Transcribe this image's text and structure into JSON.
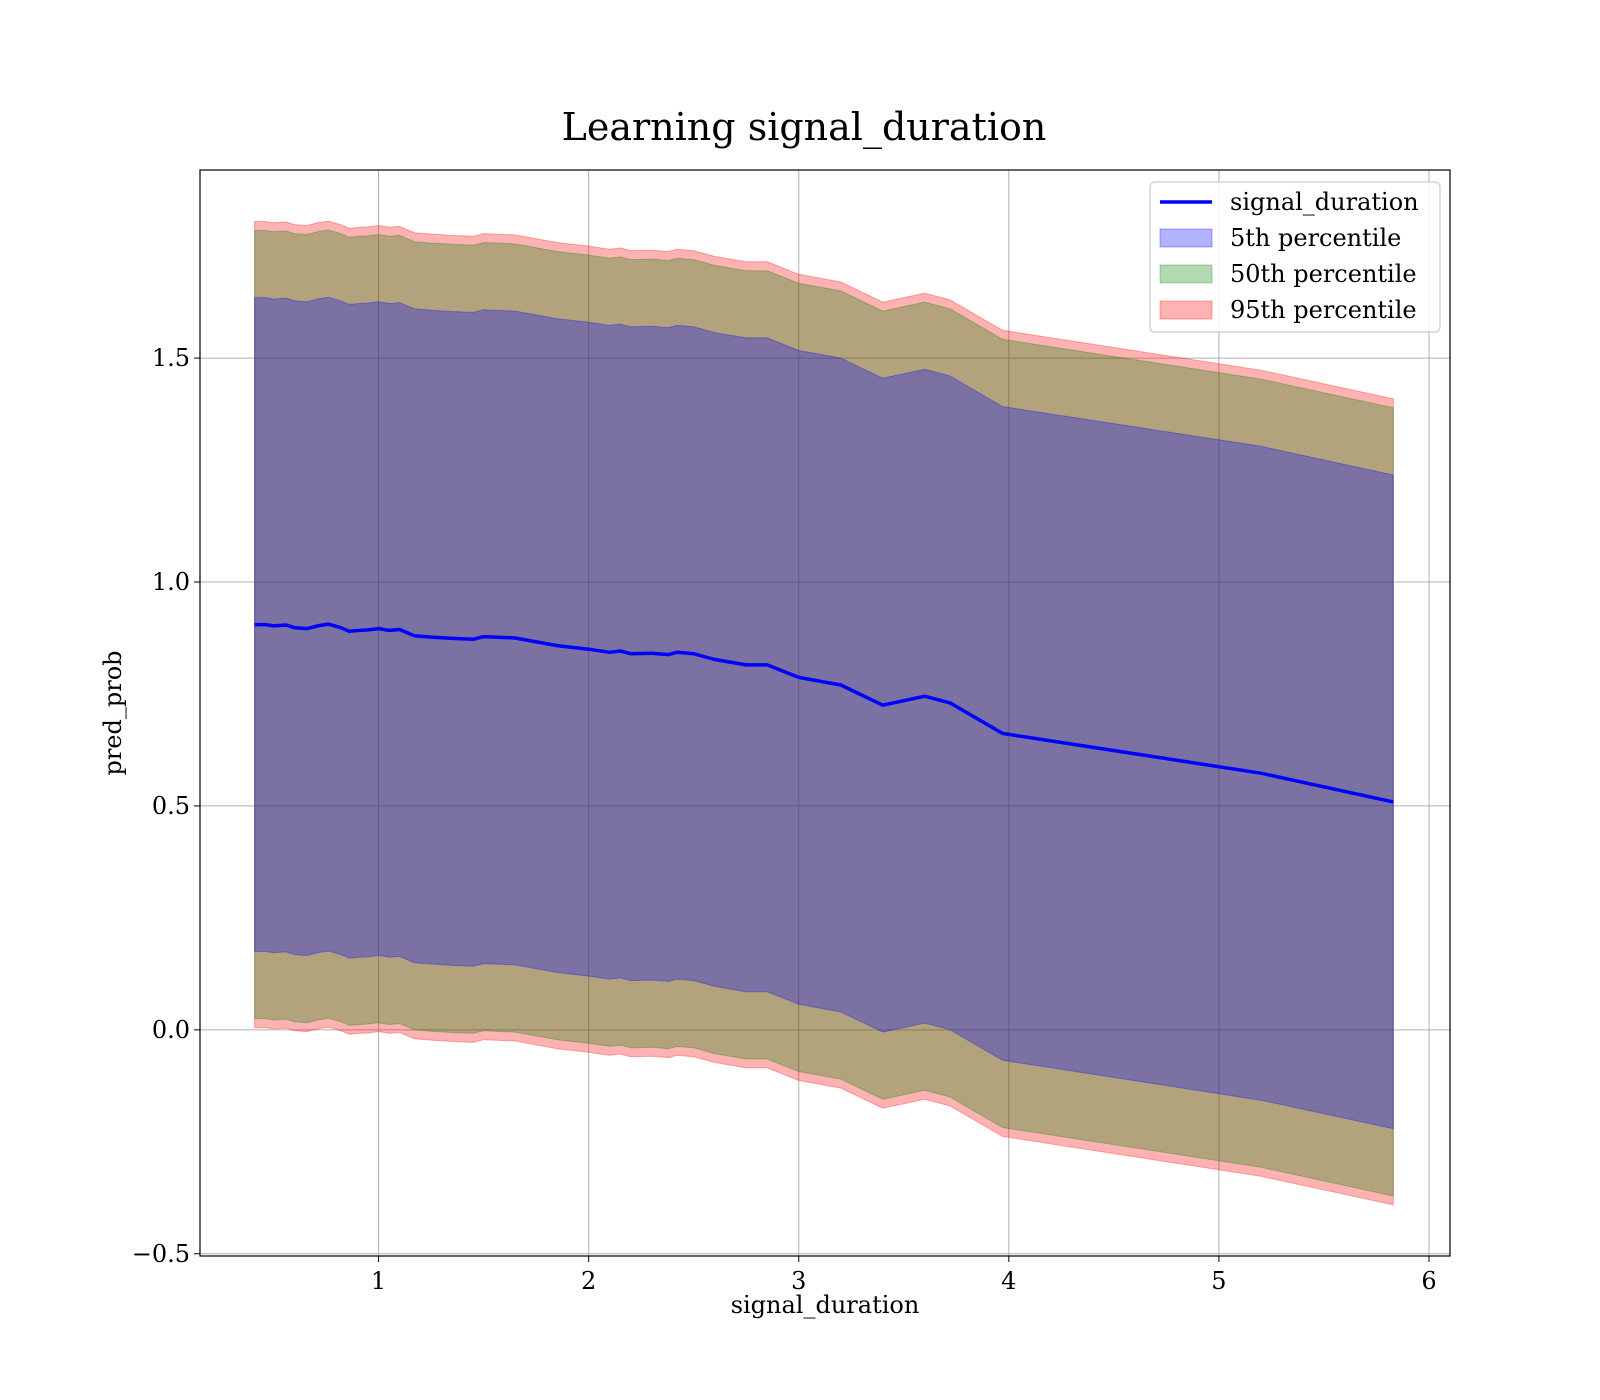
{
  "chart_data": {
    "type": "area",
    "title": "Learning signal_duration",
    "xlabel": "signal_duration",
    "ylabel": "pred_prob",
    "xlim": [
      0.15,
      6.1
    ],
    "ylim": [
      -0.505,
      1.92
    ],
    "xticks": [
      1,
      2,
      3,
      4,
      5,
      6
    ],
    "xtick_labels": [
      "1",
      "2",
      "3",
      "4",
      "5",
      "6"
    ],
    "yticks": [
      -0.5,
      0.0,
      0.5,
      1.0,
      1.5
    ],
    "ytick_labels": [
      "−0.5",
      "0.0",
      "0.5",
      "1.0",
      "1.5"
    ],
    "grid": true,
    "legend_position": "top-right",
    "x": [
      0.41,
      0.46,
      0.5,
      0.56,
      0.6,
      0.66,
      0.71,
      0.76,
      0.82,
      0.86,
      0.91,
      0.95,
      1.0,
      1.05,
      1.1,
      1.17,
      1.25,
      1.35,
      1.45,
      1.5,
      1.65,
      1.85,
      2.0,
      2.1,
      2.15,
      2.2,
      2.3,
      2.38,
      2.42,
      2.5,
      2.6,
      2.75,
      2.85,
      3.0,
      3.2,
      3.4,
      3.6,
      3.72,
      3.97,
      5.2,
      5.83
    ],
    "series": [
      {
        "name": "signal_duration",
        "kind": "line",
        "color": "#0000ff",
        "values": [
          0.905,
          0.905,
          0.902,
          0.904,
          0.898,
          0.896,
          0.902,
          0.906,
          0.898,
          0.89,
          0.892,
          0.893,
          0.896,
          0.892,
          0.894,
          0.88,
          0.877,
          0.874,
          0.872,
          0.878,
          0.875,
          0.858,
          0.85,
          0.843,
          0.846,
          0.84,
          0.841,
          0.838,
          0.843,
          0.84,
          0.827,
          0.815,
          0.815,
          0.787,
          0.77,
          0.725,
          0.745,
          0.73,
          0.662,
          0.573,
          0.509
        ]
      },
      {
        "name": "5th percentile",
        "kind": "band",
        "color": "#0000ff",
        "half_width": 0.73
      },
      {
        "name": "50th percentile",
        "kind": "band",
        "color": "#008000",
        "half_width": 0.88
      },
      {
        "name": "95th percentile",
        "kind": "band",
        "color": "#ff0000",
        "half_width": 0.9
      }
    ]
  }
}
